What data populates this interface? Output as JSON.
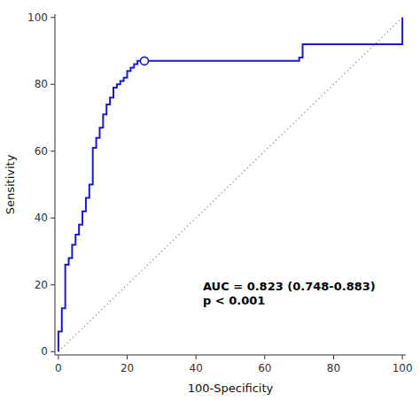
{
  "chart_data": {
    "type": "line",
    "xlabel": "100-Specificity",
    "ylabel": "Sensitivity",
    "xlim": [
      -1,
      101
    ],
    "ylim": [
      -1,
      101
    ],
    "xticks": [
      0,
      20,
      40,
      60,
      80,
      100
    ],
    "yticks": [
      0,
      20,
      40,
      60,
      80,
      100
    ],
    "grid": false,
    "series": [
      {
        "x": [
          0,
          100
        ],
        "values": [
          0,
          100
        ],
        "color": "#999999",
        "line_style": "dotted"
      },
      {
        "x": [
          0,
          0,
          1,
          1,
          2,
          2,
          3,
          3,
          4,
          4,
          5,
          5,
          6,
          6,
          7,
          7,
          8,
          8,
          9,
          9,
          10,
          10,
          11,
          11,
          12,
          12,
          13,
          13,
          14,
          14,
          15,
          15,
          16,
          16,
          17,
          17,
          18,
          18,
          19,
          19,
          20,
          20,
          21,
          21,
          22,
          22,
          23,
          23,
          25,
          25,
          70,
          70,
          71,
          71,
          100,
          100
        ],
        "values": [
          0,
          6,
          6,
          13,
          13,
          26,
          26,
          28,
          28,
          32,
          32,
          35,
          35,
          38,
          38,
          42,
          42,
          46,
          46,
          50,
          50,
          61,
          61,
          64,
          64,
          67,
          67,
          71,
          71,
          74,
          74,
          76,
          76,
          79,
          79,
          80,
          80,
          81,
          81,
          82,
          82,
          84,
          84,
          85,
          85,
          86,
          86,
          87,
          87,
          87,
          87,
          88,
          88,
          92,
          92,
          100
        ],
        "color": "#1a1acc",
        "line_style": "solid"
      },
      {
        "type": "scatter",
        "x": [
          25
        ],
        "values": [
          87
        ],
        "color": "#1a1acc",
        "marker": "circle"
      }
    ],
    "annotations": [
      {
        "text": "AUC = 0.823 (0.748-0.883)\np < 0.001",
        "x": 42,
        "y": 13
      }
    ]
  }
}
